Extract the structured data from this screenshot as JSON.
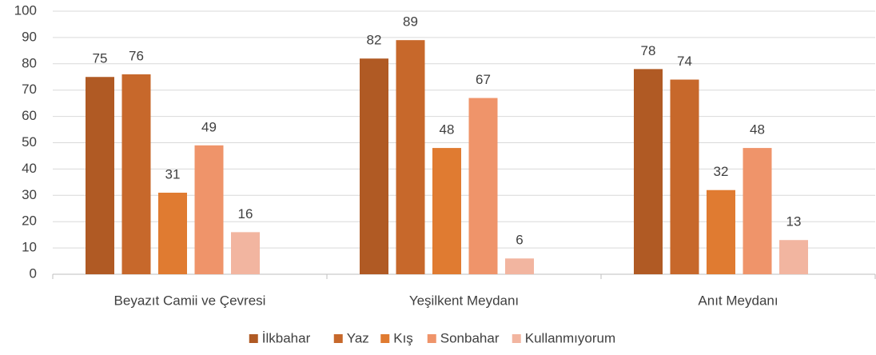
{
  "chart_data": {
    "type": "bar",
    "categories": [
      "Beyazıt Camii ve Çevresi",
      "Yeşilkent Meydanı",
      "Anıt Meydanı"
    ],
    "series": [
      {
        "name": "İlkbahar",
        "color": "#b05a24",
        "values": [
          75,
          82,
          78
        ]
      },
      {
        "name": "Yaz",
        "color": "#c7682b",
        "values": [
          76,
          89,
          74
        ]
      },
      {
        "name": "Kış",
        "color": "#e07b31",
        "values": [
          31,
          48,
          32
        ]
      },
      {
        "name": "Sonbahar",
        "color": "#ef946a",
        "values": [
          49,
          67,
          48
        ]
      },
      {
        "name": "Kullanmıyorum",
        "color": "#f2b5a0",
        "values": [
          16,
          6,
          13
        ]
      }
    ],
    "ylim": [
      0,
      100
    ],
    "yticks": [
      0,
      10,
      20,
      30,
      40,
      50,
      60,
      70,
      80,
      90,
      100
    ],
    "grid": true,
    "legend": "bottom"
  }
}
